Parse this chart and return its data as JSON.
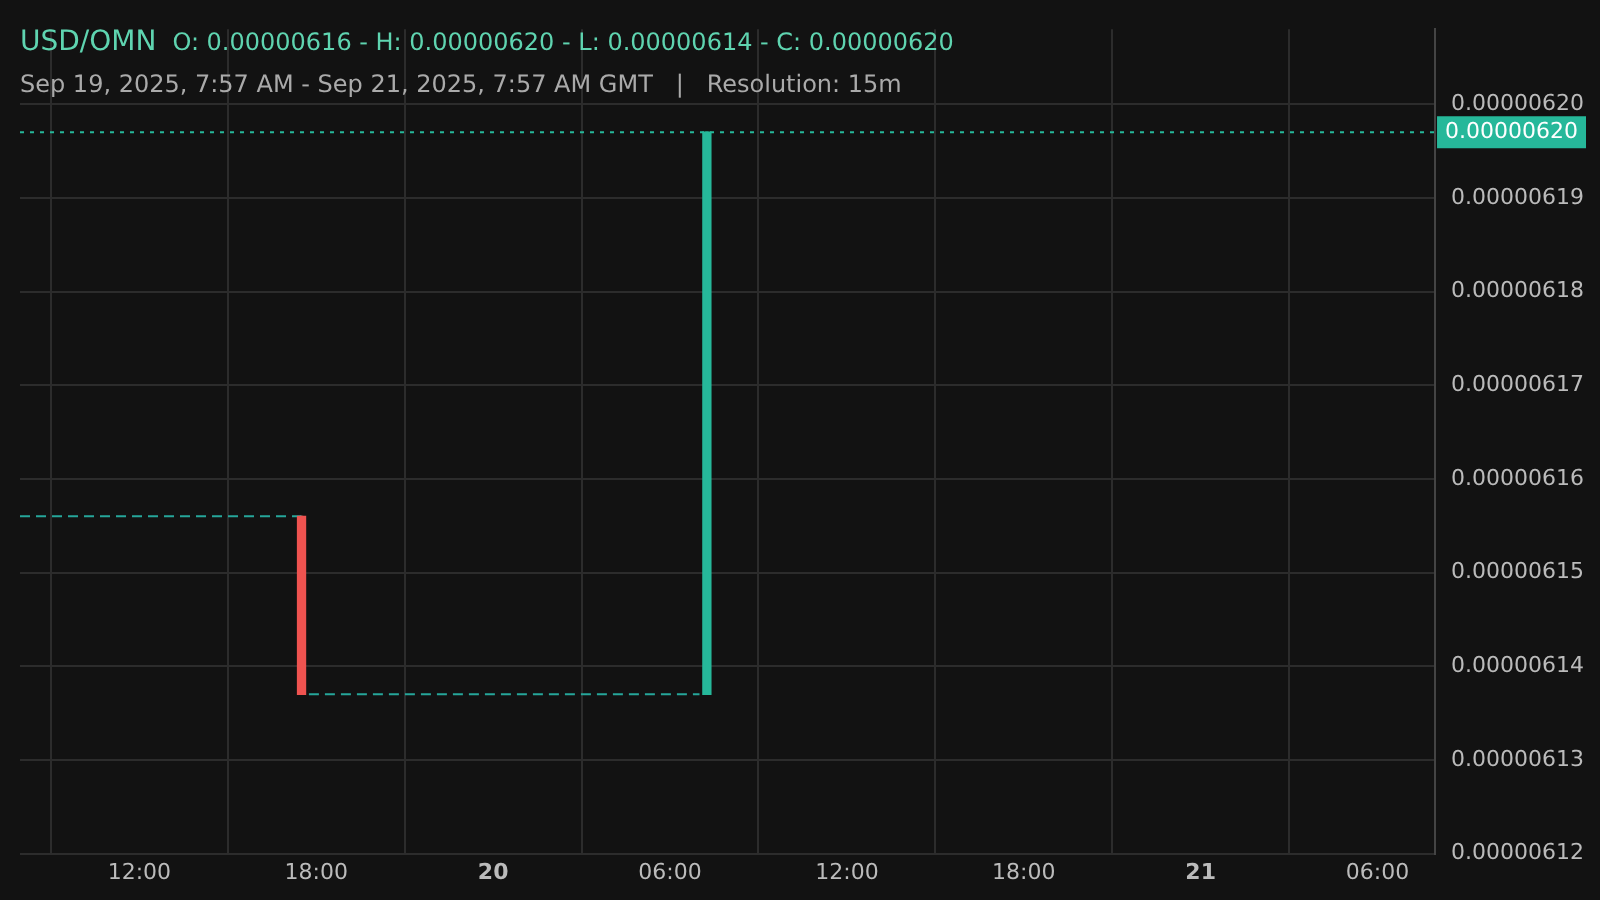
{
  "chart_data": {
    "type": "candlestick",
    "title": "USD/OMN",
    "subtitle": "Sep 19, 2025, 7:57 AM - Sep 21, 2025, 7:57 AM GMT   |   Resolution: 15m",
    "annotations": [
      "O: 0.00000616 - H: 0.00000620 - L: 0.00000614 - C: 0.00000620"
    ],
    "x": [
      "2025-09-19T17:30",
      "2025-09-20T07:15"
    ],
    "ohlc": [
      [
        6.156e-06,
        6.156e-06,
        6.137e-06,
        6.137e-06
      ],
      [
        6.137e-06,
        6.197e-06,
        6.137e-06,
        6.197e-06
      ]
    ],
    "colors": [
      "#ef5350",
      "#26b89a"
    ],
    "series": [
      {
        "type": "line",
        "color": "#26a69a",
        "line_style": "dashed",
        "x": [
          "2025-09-19T07:57",
          "2025-09-19T17:30",
          "2025-09-19T17:37",
          "2025-09-19T17:45",
          "2025-09-20T07:00"
        ],
        "values": [
          6.156e-06,
          6.156e-06,
          null,
          6.137e-06,
          6.137e-06
        ]
      }
    ],
    "ref_lines": [
      {
        "axis": "y",
        "value": 6.197e-06,
        "label": "0.00000620",
        "color": "#26b89a",
        "line_style": "dotted"
      }
    ],
    "xlim": [
      "2025-09-19T07:57",
      "2025-09-21T07:57"
    ],
    "xticks": [
      {
        "value": "2025-09-19T12:00",
        "label": "12:00"
      },
      {
        "value": "2025-09-19T18:00",
        "label": "18:00"
      },
      {
        "value": "2025-09-20T00:00",
        "label": "20"
      },
      {
        "value": "2025-09-20T06:00",
        "label": "06:00"
      },
      {
        "value": "2025-09-20T12:00",
        "label": "12:00"
      },
      {
        "value": "2025-09-20T18:00",
        "label": "18:00"
      },
      {
        "value": "2025-09-21T00:00",
        "label": "21"
      },
      {
        "value": "2025-09-21T06:00",
        "label": "06:00"
      }
    ],
    "ylim": [
      6.12e-06,
      6.208e-06
    ],
    "yticks": [
      {
        "value": 6.12e-06,
        "label": "0.00000612"
      },
      {
        "value": 6.13e-06,
        "label": "0.00000613"
      },
      {
        "value": 6.14e-06,
        "label": "0.00000614"
      },
      {
        "value": 6.15e-06,
        "label": "0.00000615"
      },
      {
        "value": 6.16e-06,
        "label": "0.00000616"
      },
      {
        "value": 6.17e-06,
        "label": "0.00000617"
      },
      {
        "value": 6.18e-06,
        "label": "0.00000618"
      },
      {
        "value": 6.19e-06,
        "label": "0.00000619"
      },
      {
        "value": 6.2e-06,
        "label": "0.00000620"
      }
    ],
    "grid": true,
    "legend": false
  }
}
